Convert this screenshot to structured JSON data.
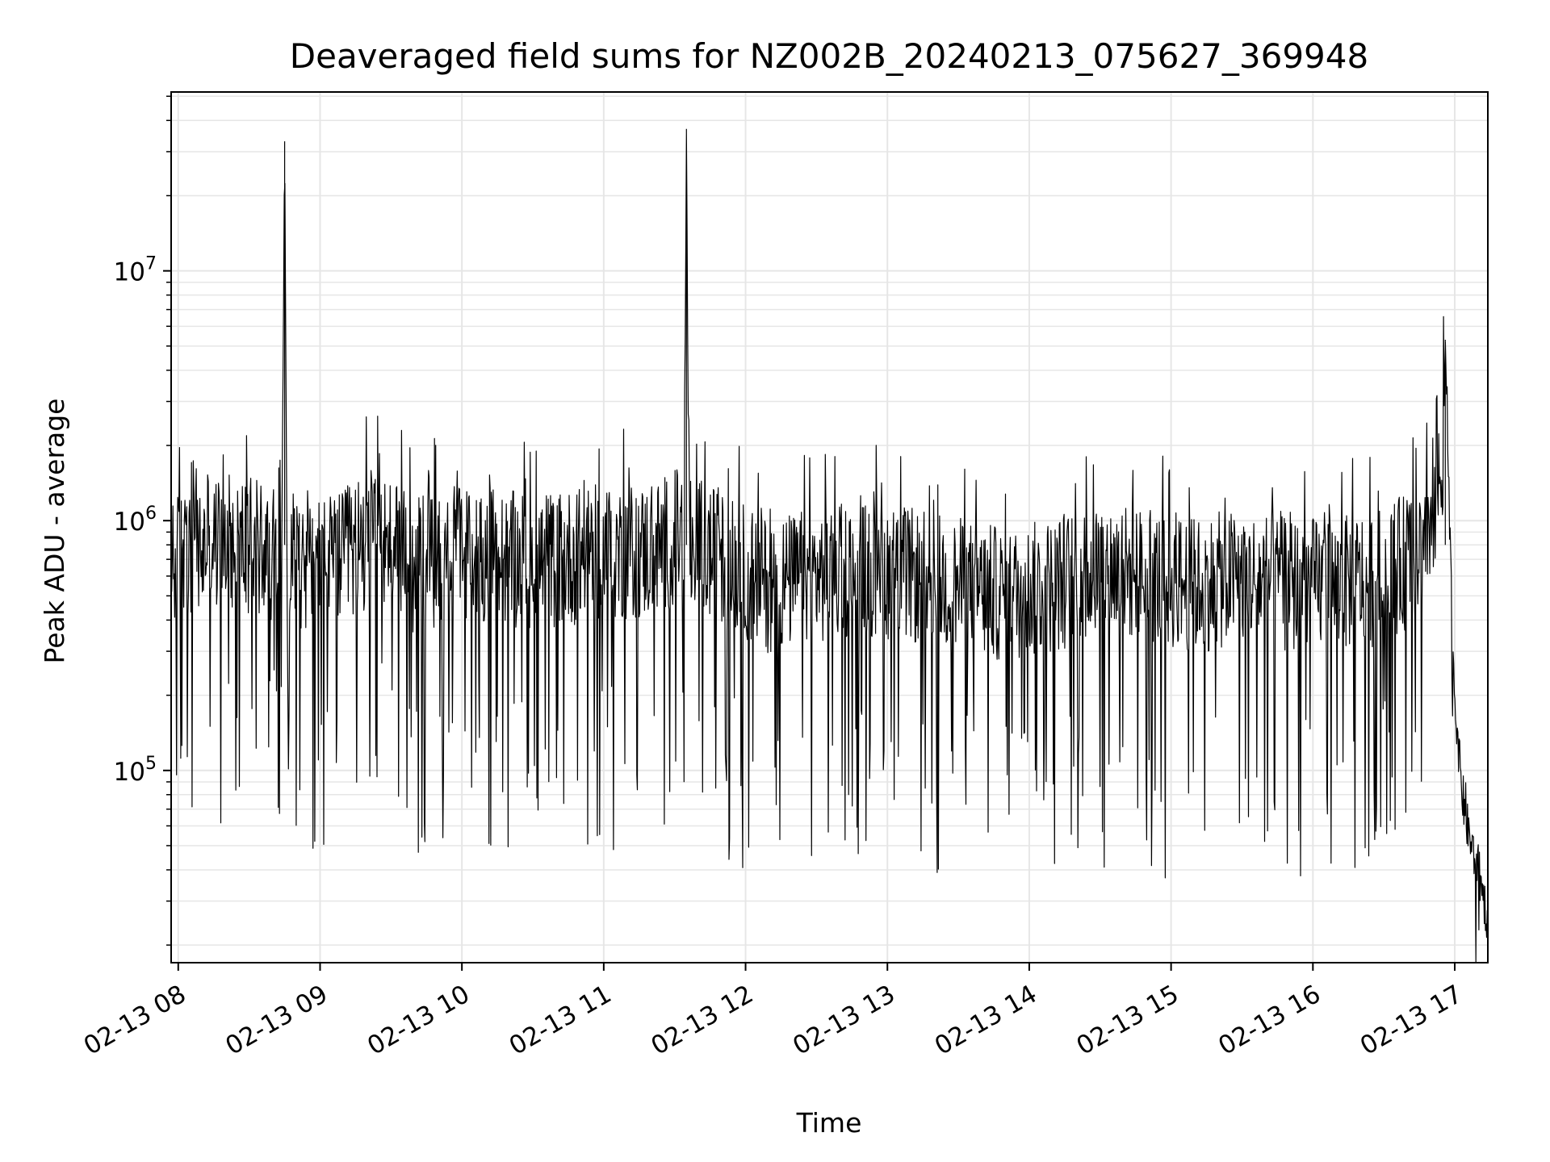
{
  "chart_data": {
    "type": "line",
    "title": "Deaveraged field sums for NZ002B_20240213_075627_369948",
    "xlabel": "Time",
    "ylabel": "Peak ADU - average",
    "y_scale": "log",
    "ylim": [
      17000,
      52000000
    ],
    "xlim": [
      "2024-02-13 07:57",
      "2024-02-13 17:14"
    ],
    "x_ticks": [
      "02-13 08",
      "02-13 09",
      "02-13 10",
      "02-13 11",
      "02-13 12",
      "02-13 13",
      "02-13 14",
      "02-13 15",
      "02-13 16",
      "02-13 17"
    ],
    "x_tick_hours": [
      8,
      9,
      10,
      11,
      12,
      13,
      14,
      15,
      16,
      17
    ],
    "y_ticks": [
      {
        "value": 100000,
        "base": "10",
        "exp": "5"
      },
      {
        "value": 1000000,
        "base": "10",
        "exp": "6"
      },
      {
        "value": 10000000,
        "base": "10",
        "exp": "7"
      }
    ],
    "grid": true,
    "line_color": "#000000",
    "grid_color": "#e6e6e6",
    "series": [
      {
        "x": [
          "2024-02-13 07:57",
          "2024-02-13 08:00",
          "2024-02-13 08:10",
          "2024-02-13 08:20",
          "2024-02-13 08:30",
          "2024-02-13 08:40",
          "2024-02-13 08:44",
          "2024-02-13 08:45",
          "2024-02-13 08:46",
          "2024-02-13 08:55",
          "2024-02-13 09:10",
          "2024-02-13 09:24",
          "2024-02-13 09:40",
          "2024-02-13 10:00",
          "2024-02-13 10:20",
          "2024-02-13 10:40",
          "2024-02-13 11:00",
          "2024-02-13 11:20",
          "2024-02-13 11:34",
          "2024-02-13 11:35",
          "2024-02-13 11:36",
          "2024-02-13 11:50",
          "2024-02-13 12:10",
          "2024-02-13 12:30",
          "2024-02-13 12:50",
          "2024-02-13 13:10",
          "2024-02-13 13:30",
          "2024-02-13 13:50",
          "2024-02-13 14:10",
          "2024-02-13 14:30",
          "2024-02-13 14:50",
          "2024-02-13 15:10",
          "2024-02-13 15:30",
          "2024-02-13 15:50",
          "2024-02-13 16:10",
          "2024-02-13 16:30",
          "2024-02-13 16:45",
          "2024-02-13 16:55",
          "2024-02-13 16:56",
          "2024-02-13 16:58",
          "2024-02-13 17:00",
          "2024-02-13 17:03",
          "2024-02-13 17:06",
          "2024-02-13 17:10",
          "2024-02-13 17:14"
        ],
        "y": [
          600000,
          700000,
          750000,
          850000,
          800000,
          750000,
          1200000,
          33000000,
          800000,
          650000,
          700000,
          900000,
          650000,
          750000,
          700000,
          700000,
          750000,
          750000,
          900000,
          37000000,
          800000,
          700000,
          550000,
          600000,
          650000,
          600000,
          550000,
          500000,
          550000,
          650000,
          600000,
          550000,
          600000,
          550000,
          550000,
          600000,
          750000,
          1500000,
          5300000,
          800000,
          200000,
          80000,
          55000,
          40000,
          25000
        ]
      }
    ]
  }
}
